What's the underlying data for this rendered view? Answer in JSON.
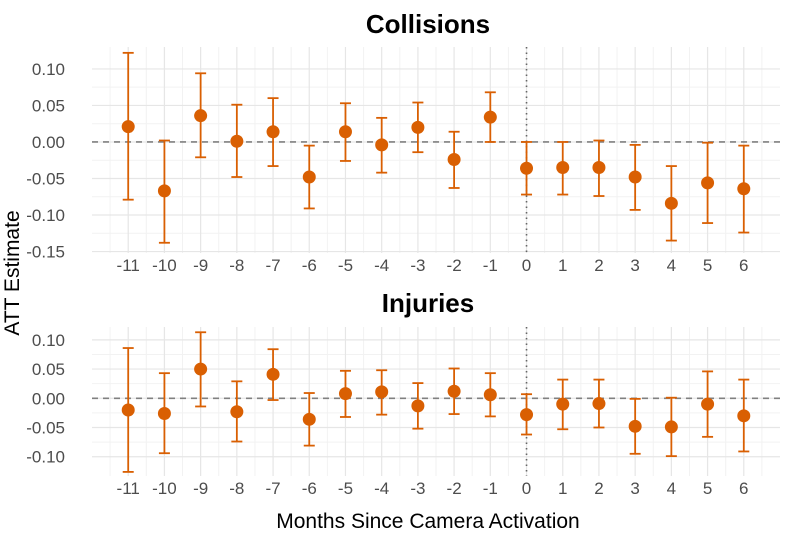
{
  "figure": {
    "ylabel": "ATT Estimate",
    "xlabel": "Months Since Camera Activation",
    "point_color": "#d95f02",
    "reference_line_color": "#808080"
  },
  "chart_data": [
    {
      "type": "scatter",
      "title": "Collisions",
      "x": [
        -11,
        -10,
        -9,
        -8,
        -7,
        -6,
        -5,
        -4,
        -3,
        -2,
        -1,
        0,
        1,
        2,
        3,
        4,
        5,
        6
      ],
      "y": [
        0.021,
        -0.067,
        0.036,
        0.001,
        0.014,
        -0.048,
        0.014,
        -0.004,
        0.02,
        -0.024,
        0.034,
        -0.036,
        -0.035,
        -0.035,
        -0.048,
        -0.084,
        -0.056,
        -0.064
      ],
      "ci_low": [
        -0.079,
        -0.138,
        -0.021,
        -0.048,
        -0.033,
        -0.091,
        -0.026,
        -0.042,
        -0.014,
        -0.063,
        0.0,
        -0.072,
        -0.072,
        -0.074,
        -0.093,
        -0.135,
        -0.111,
        -0.124
      ],
      "ci_high": [
        0.122,
        0.002,
        0.094,
        0.051,
        0.06,
        -0.005,
        0.053,
        0.033,
        0.054,
        0.014,
        0.068,
        0.0,
        0.0,
        0.002,
        -0.004,
        -0.033,
        -0.001,
        -0.005
      ],
      "yticks": [
        -0.15,
        -0.1,
        -0.05,
        0.0,
        0.05,
        0.1
      ],
      "ytick_labels": [
        "-0.15",
        "-0.10",
        "-0.05",
        "0.00",
        "0.05",
        "0.10"
      ],
      "xtick_labels": [
        "-11",
        "-10",
        "-9",
        "-8",
        "-7",
        "-6",
        "-5",
        "-4",
        "-3",
        "-2",
        "-1",
        "0",
        "1",
        "2",
        "3",
        "4",
        "5",
        "6"
      ],
      "ylim": [
        -0.152,
        0.13
      ],
      "xlim": [
        -12,
        7
      ],
      "hline": 0,
      "vline": 0,
      "grid": true
    },
    {
      "type": "scatter",
      "title": "Injuries",
      "x": [
        -11,
        -10,
        -9,
        -8,
        -7,
        -6,
        -5,
        -4,
        -3,
        -2,
        -1,
        0,
        1,
        2,
        3,
        4,
        5,
        6
      ],
      "y": [
        -0.02,
        -0.026,
        0.05,
        -0.023,
        0.041,
        -0.036,
        0.008,
        0.011,
        -0.013,
        0.012,
        0.006,
        -0.028,
        -0.01,
        -0.009,
        -0.048,
        -0.049,
        -0.01,
        -0.03
      ],
      "ci_low": [
        -0.126,
        -0.094,
        -0.014,
        -0.074,
        -0.003,
        -0.081,
        -0.032,
        -0.028,
        -0.052,
        -0.027,
        -0.031,
        -0.062,
        -0.053,
        -0.05,
        -0.095,
        -0.099,
        -0.066,
        -0.091
      ],
      "ci_high": [
        0.086,
        0.043,
        0.113,
        0.029,
        0.084,
        0.009,
        0.047,
        0.048,
        0.026,
        0.051,
        0.043,
        0.007,
        0.032,
        0.032,
        -0.001,
        0.001,
        0.046,
        0.032
      ],
      "yticks": [
        -0.1,
        -0.05,
        0.0,
        0.05,
        0.1
      ],
      "ytick_labels": [
        "-0.10",
        "-0.05",
        "0.00",
        "0.05",
        "0.10"
      ],
      "xtick_labels": [
        "-11",
        "-10",
        "-9",
        "-8",
        "-7",
        "-6",
        "-5",
        "-4",
        "-3",
        "-2",
        "-1",
        "0",
        "1",
        "2",
        "3",
        "4",
        "5",
        "6"
      ],
      "ylim": [
        -0.133,
        0.122
      ],
      "xlim": [
        -12,
        7
      ],
      "hline": 0,
      "vline": 0,
      "grid": true
    }
  ]
}
